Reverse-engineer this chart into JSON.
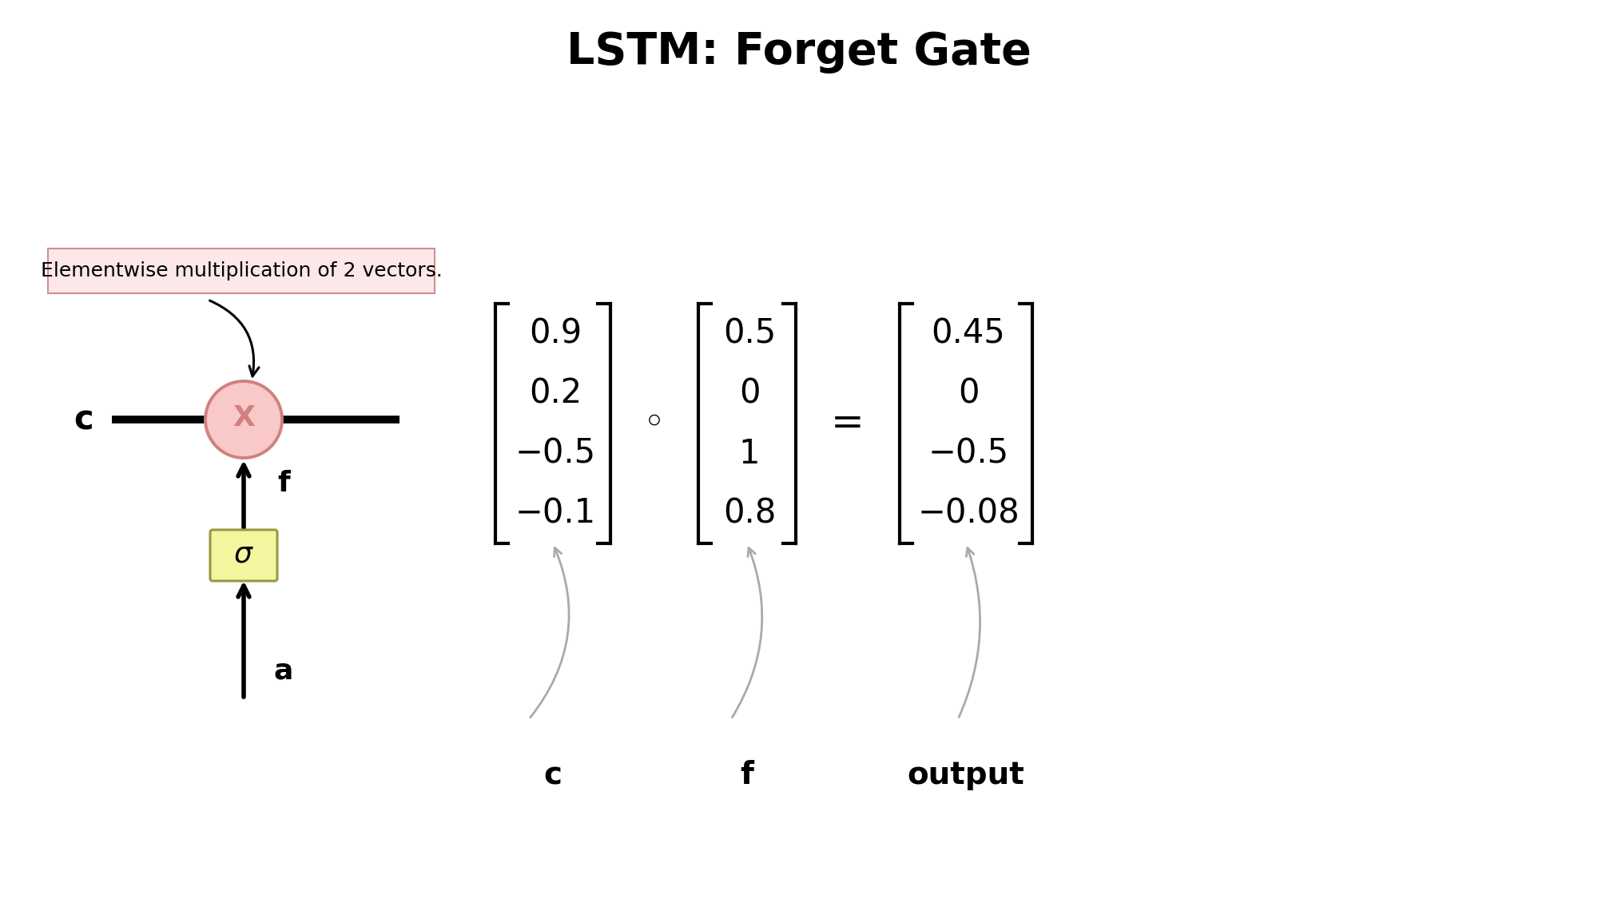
{
  "title": "LSTM: Forget Gate",
  "title_fontsize": 40,
  "title_fontweight": "bold",
  "background_color": "#ffffff",
  "annotation_text": "Elementwise multiplication of 2 vectors.",
  "annotation_bg": "#fce8e8",
  "annotation_fontsize": 18,
  "circle_facecolor": "#f9c8c8",
  "circle_edgecolor": "#d08080",
  "sigma_facecolor": "#f5f5a0",
  "sigma_edgecolor": "#999944",
  "label_c": "c",
  "label_f": "f",
  "label_a": "a",
  "label_output": "output",
  "vec_c": [
    "0.9",
    "0.2",
    "−0.5",
    "−0.1"
  ],
  "vec_f": [
    "0.5",
    "0",
    "1",
    "0.8"
  ],
  "vec_out": [
    "0.45",
    "0",
    "−0.5",
    "−0.08"
  ],
  "operator": "◦",
  "equals": "=",
  "gray_arrow": "#aaaaaa",
  "black": "#000000"
}
